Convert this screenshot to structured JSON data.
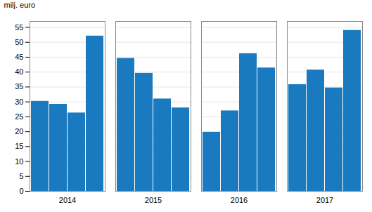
{
  "chart_data": {
    "type": "bar",
    "ylabel": "milj. euro",
    "categories": [
      "2014",
      "2015",
      "2016",
      "2017"
    ],
    "series": [
      {
        "values": [
          30.2,
          44.6,
          19.8,
          35.8
        ]
      },
      {
        "values": [
          29.2,
          39.6,
          27.0,
          40.7
        ]
      },
      {
        "values": [
          26.3,
          31.0,
          46.2,
          34.7
        ]
      },
      {
        "values": [
          52.1,
          28.0,
          41.4,
          54.0
        ]
      }
    ],
    "color": "#1a7abf",
    "ylim": [
      0,
      57
    ],
    "yticks": [
      0,
      5,
      10,
      15,
      20,
      25,
      30,
      35,
      40,
      45,
      50,
      55
    ],
    "grid": true
  }
}
